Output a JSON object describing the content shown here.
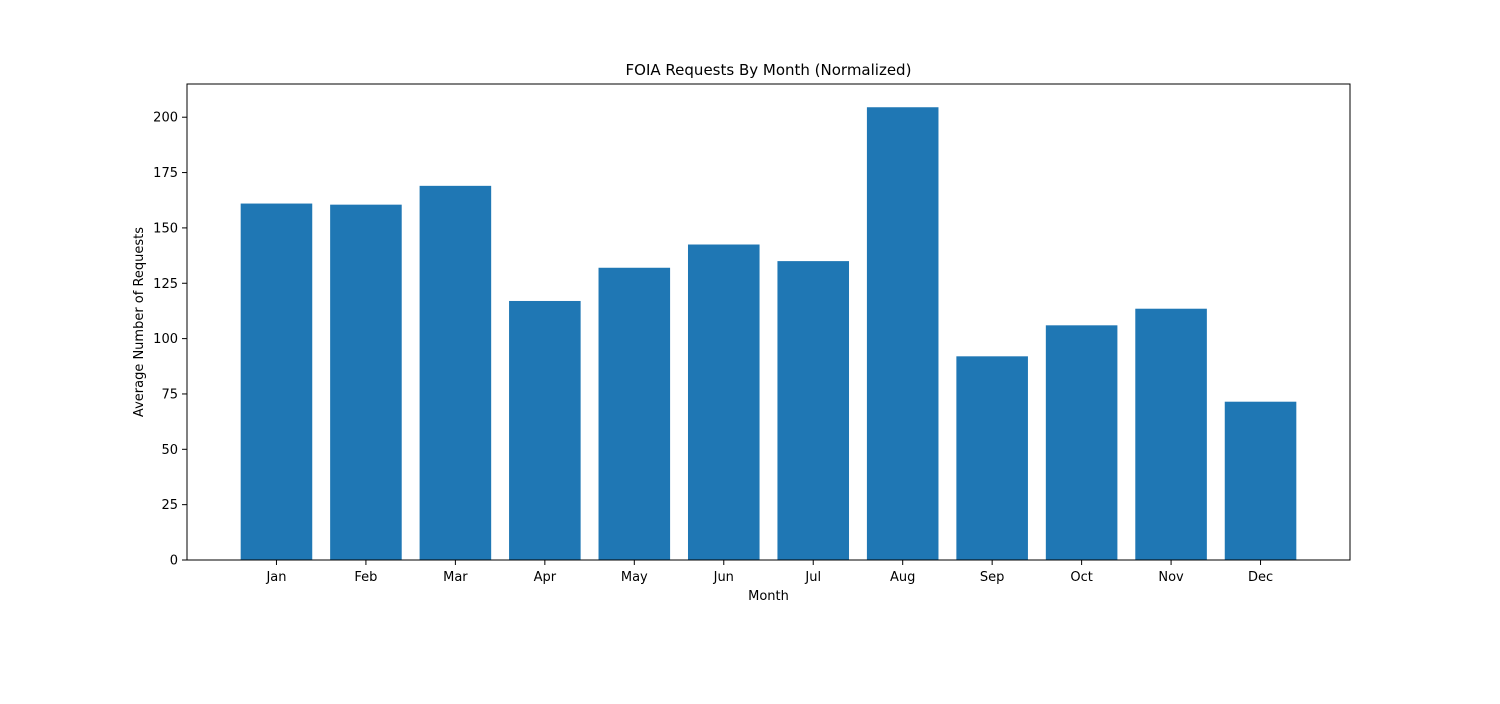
{
  "chart_data": {
    "type": "bar",
    "title": "FOIA Requests By Month (Normalized)",
    "xlabel": "Month",
    "ylabel": "Average Number of Requests",
    "categories": [
      "Jan",
      "Feb",
      "Mar",
      "Apr",
      "May",
      "Jun",
      "Jul",
      "Aug",
      "Sep",
      "Oct",
      "Nov",
      "Dec"
    ],
    "values": [
      161,
      160.5,
      169,
      117,
      132,
      142.5,
      135,
      204.5,
      92,
      106,
      113.5,
      71.5
    ],
    "ylim": [
      0,
      215
    ],
    "yticks": [
      0,
      25,
      50,
      75,
      100,
      125,
      150,
      175,
      200
    ],
    "bar_color": "#1f77b4",
    "grid": false,
    "legend": "none"
  }
}
